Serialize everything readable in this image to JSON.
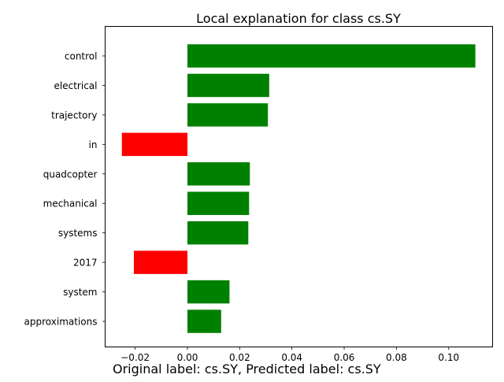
{
  "chart_data": {
    "type": "bar",
    "orientation": "horizontal",
    "title": "Local explanation for class cs.SY",
    "xlabel": "",
    "ylabel": "",
    "categories": [
      "control",
      "electrical",
      "trajectory",
      "in",
      "quadcopter",
      "mechanical",
      "systems",
      "2017",
      "system",
      "approximations"
    ],
    "values": [
      0.1102,
      0.0313,
      0.0308,
      -0.0251,
      0.0239,
      0.0236,
      0.0233,
      -0.0205,
      0.0161,
      0.0129
    ],
    "xlim": [
      -0.0315,
      0.1168
    ],
    "xticks": [
      -0.02,
      0.0,
      0.02,
      0.04,
      0.06,
      0.08,
      0.1
    ],
    "xtick_labels": [
      "−0.02",
      "0.00",
      "0.02",
      "0.04",
      "0.06",
      "0.08",
      "0.10"
    ],
    "grid": false,
    "colors": {
      "positive": "#008000",
      "negative": "#ff0000"
    }
  },
  "caption": "Original label: cs.SY, Predicted label: cs.SY"
}
